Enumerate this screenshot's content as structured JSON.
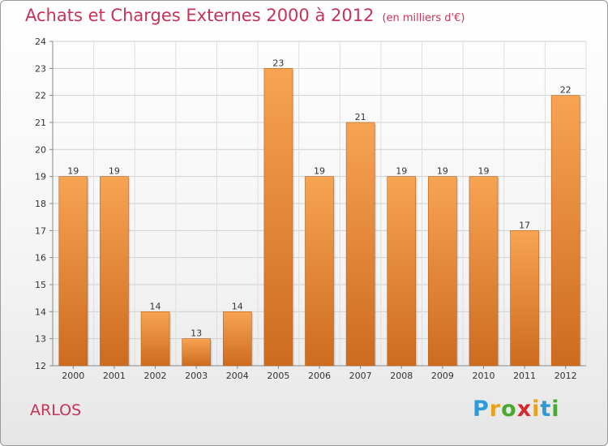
{
  "header": {
    "title": "Achats et Charges Externes 2000 à 2012",
    "subtitle": "(en milliers d'€)"
  },
  "footer": {
    "place_name": "ARLOS",
    "logo_text": "Proxiti"
  },
  "colors": {
    "bar_light": "#f7a452",
    "bar_dark": "#cd6b1e",
    "accent_text": "#c8325a"
  },
  "chart_data": {
    "type": "bar",
    "title": "Achats et Charges Externes 2000 à 2012",
    "subtitle": "(en milliers d'€)",
    "xlabel": "",
    "ylabel": "",
    "categories": [
      "2000",
      "2001",
      "2002",
      "2003",
      "2004",
      "2005",
      "2006",
      "2007",
      "2008",
      "2009",
      "2010",
      "2011",
      "2012"
    ],
    "values": [
      19,
      19,
      14,
      13,
      14,
      23,
      19,
      21,
      19,
      19,
      19,
      17,
      22
    ],
    "ylim": [
      12,
      24
    ],
    "yticks": [
      12,
      13,
      14,
      15,
      16,
      17,
      18,
      19,
      20,
      21,
      22,
      23,
      24
    ],
    "grid": true,
    "legend": "none"
  }
}
